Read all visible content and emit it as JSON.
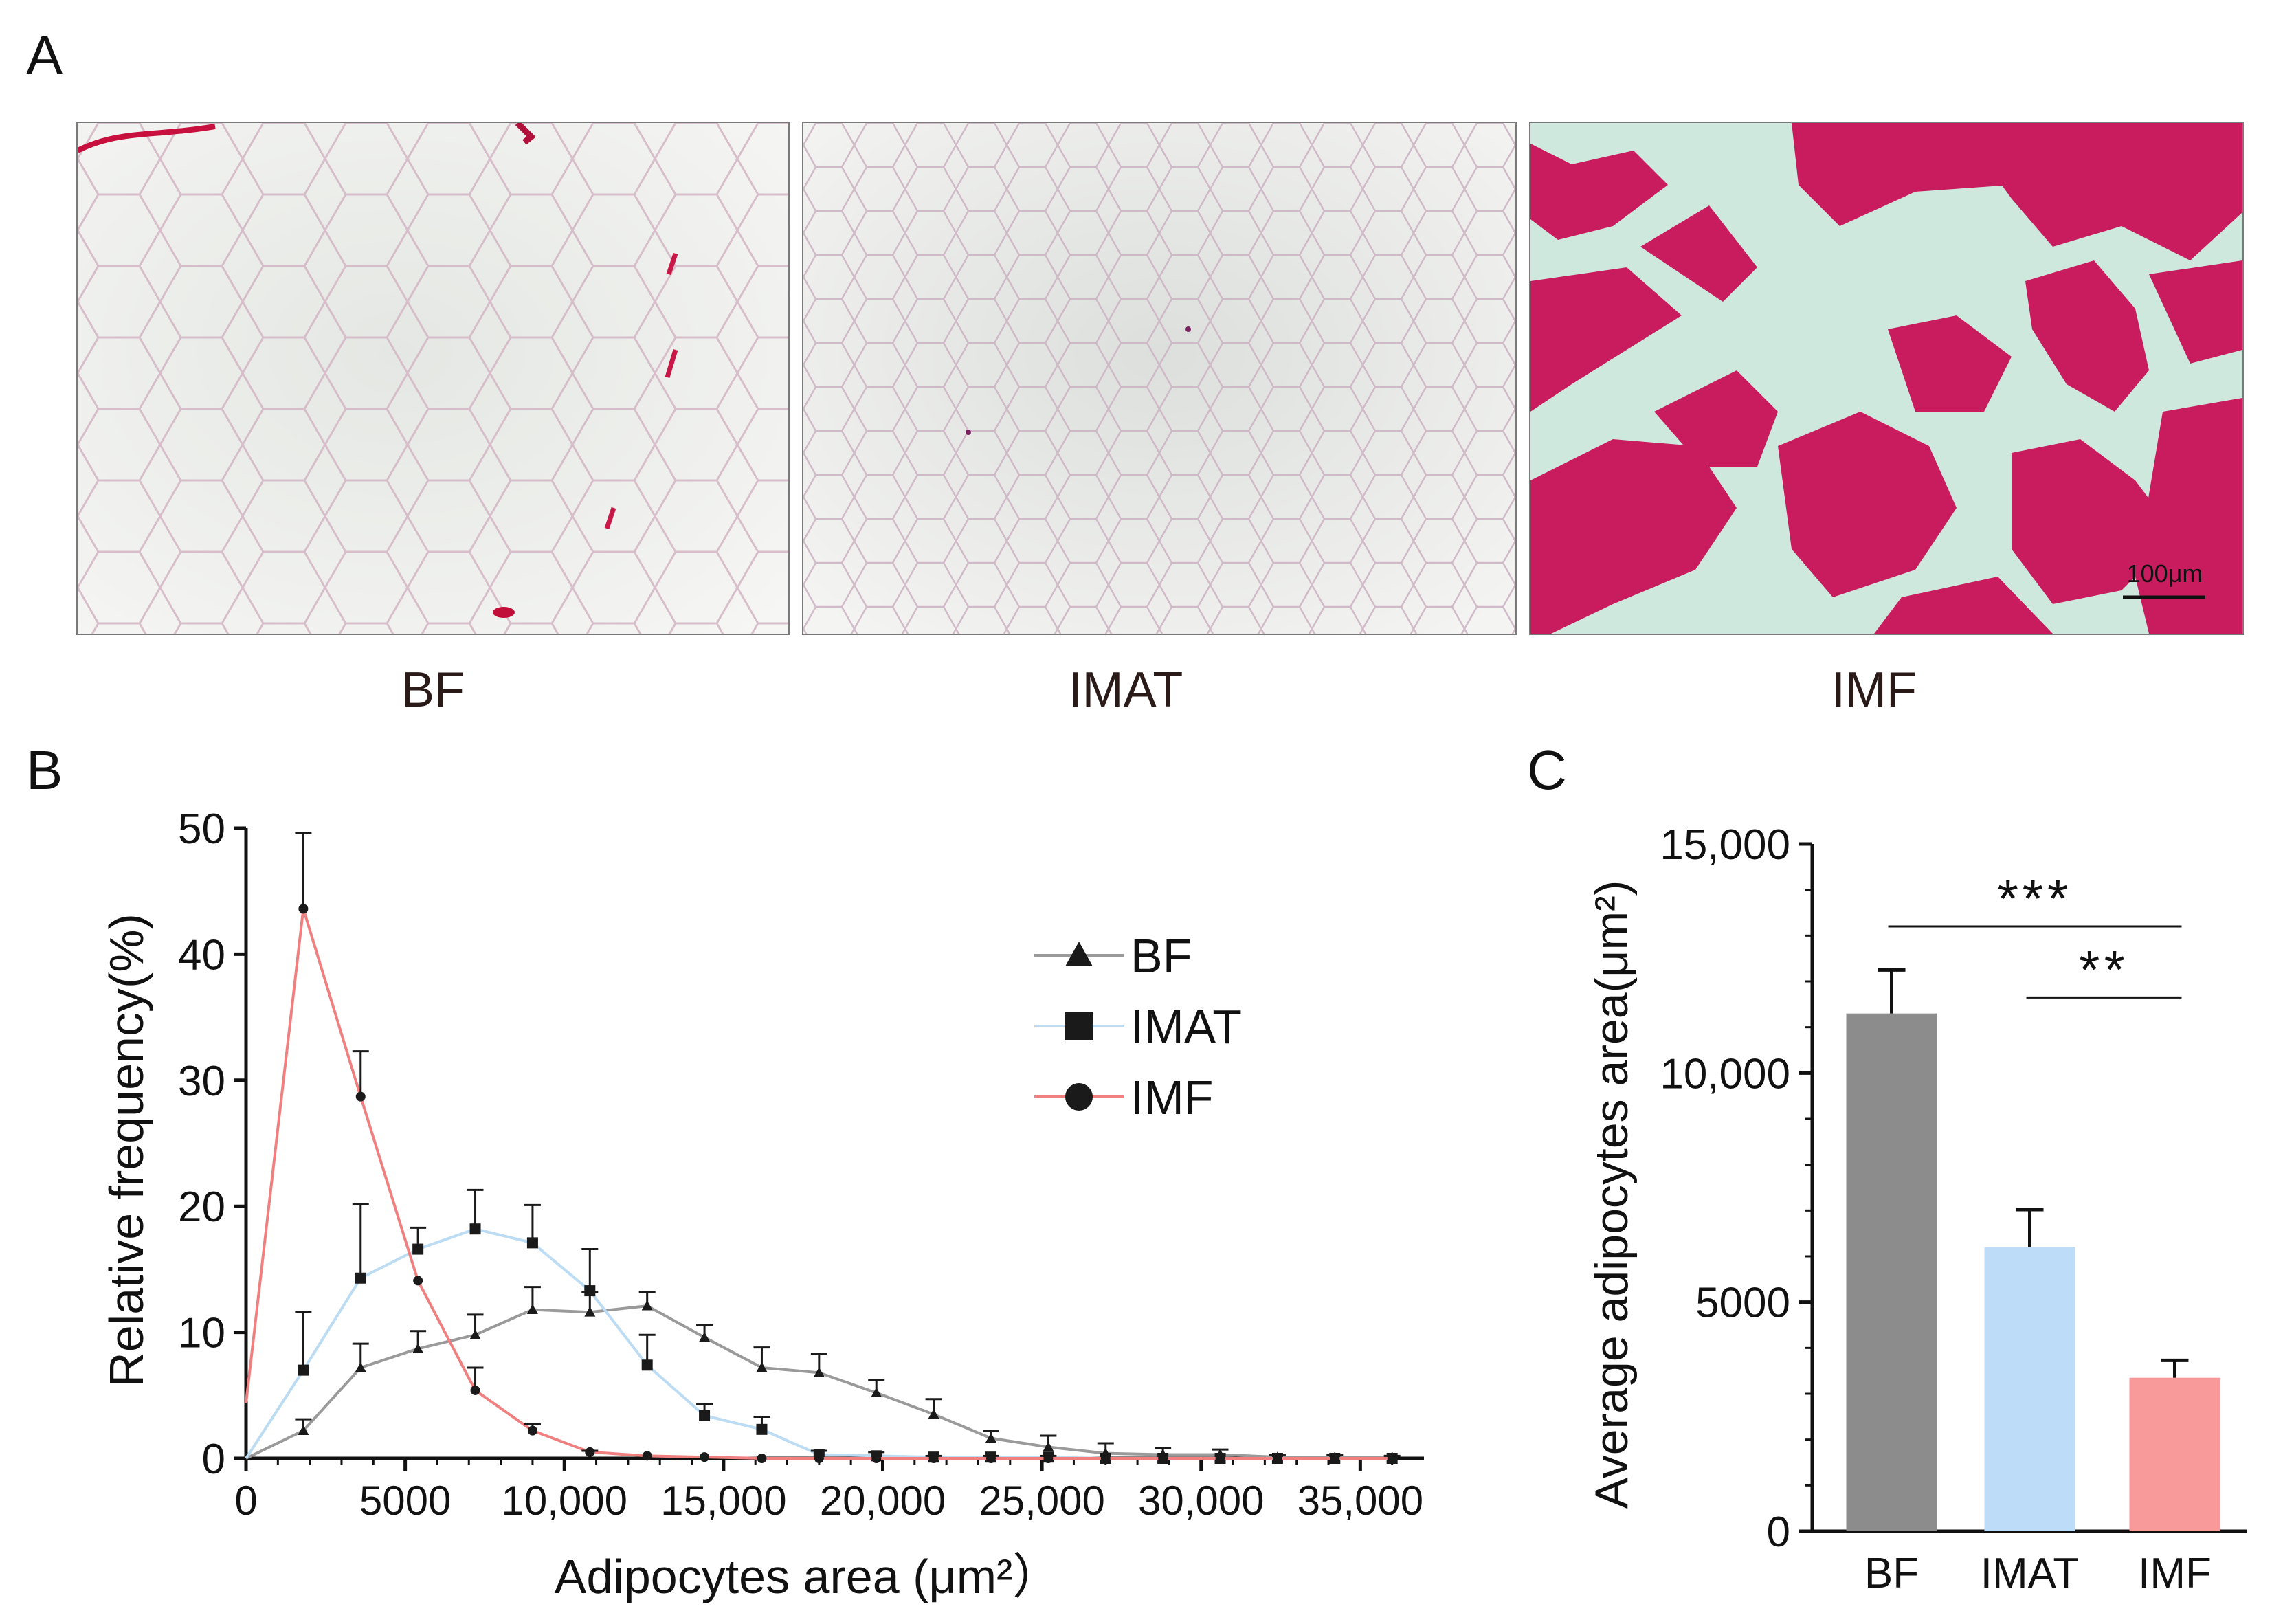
{
  "panels": {
    "a": "A",
    "b": "B",
    "c": "C"
  },
  "histology": [
    {
      "label": "BF"
    },
    {
      "label": "IMAT"
    },
    {
      "label": "IMF",
      "scale_bar": "100μm"
    }
  ],
  "chart_data": [
    {
      "type": "line",
      "xlabel": "Adipocytes area (μm²）",
      "ylabel": "Relative frequency(%)",
      "xlim": [
        0,
        37000
      ],
      "ylim": [
        0,
        50
      ],
      "xticks": [
        0,
        5000,
        10000,
        15000,
        20000,
        25000,
        30000,
        35000
      ],
      "xtick_labels": [
        "0",
        "5000",
        "10,000",
        "15,000",
        "20,000",
        "25,000",
        "30,000",
        "35,000"
      ],
      "yticks": [
        0,
        10,
        20,
        30,
        40,
        50
      ],
      "ytick_labels": [
        "0",
        "10",
        "20",
        "30",
        "40",
        "50"
      ],
      "x": [
        0,
        1800,
        3600,
        5400,
        7200,
        9000,
        10800,
        12600,
        14400,
        16200,
        18000,
        19800,
        21600,
        23400,
        25200,
        27000,
        28800,
        30600,
        32400,
        34200,
        36000
      ],
      "legend_position": "top-right",
      "series": [
        {
          "name": "BF",
          "marker": "triangle",
          "color": "#9a9a9a",
          "values": [
            0,
            2.2,
            7.2,
            8.7,
            9.8,
            11.8,
            11.6,
            12.1,
            9.6,
            7.2,
            6.8,
            5.2,
            3.5,
            1.6,
            0.9,
            0.4,
            0.3,
            0.3,
            0.1,
            0.1,
            0.1
          ],
          "errors": [
            0,
            0.9,
            1.9,
            1.4,
            1.6,
            1.8,
            1.6,
            1.1,
            1.0,
            1.6,
            1.5,
            1.0,
            1.2,
            0.6,
            0.9,
            0.8,
            0.5,
            0.4,
            0.2,
            0.2,
            0.1
          ]
        },
        {
          "name": "IMAT",
          "marker": "square",
          "color": "#bcdcf3",
          "values": [
            0,
            7.0,
            14.3,
            16.6,
            18.2,
            17.1,
            13.3,
            7.4,
            3.4,
            2.3,
            0.3,
            0.2,
            0.1,
            0.1,
            0.1,
            0,
            0,
            0,
            0,
            0,
            0
          ],
          "errors": [
            0,
            4.6,
            5.9,
            1.7,
            3.1,
            3.0,
            3.3,
            2.4,
            0.9,
            1.0,
            0.3,
            0.3,
            0.1,
            0.1,
            0.1,
            0,
            0,
            0,
            0,
            0,
            0
          ]
        },
        {
          "name": "IMF",
          "marker": "circle",
          "color": "#f08080",
          "values": [
            4.4,
            43.6,
            28.7,
            14.1,
            5.4,
            2.2,
            0.5,
            0.2,
            0.1,
            0,
            0,
            0,
            0,
            0,
            0,
            0,
            0,
            0,
            0,
            0,
            0
          ],
          "errors": [
            0,
            6.0,
            3.6,
            0,
            1.8,
            0.5,
            0.1,
            0,
            0,
            0,
            0,
            0,
            0,
            0,
            0,
            0,
            0,
            0,
            0,
            0,
            0
          ]
        }
      ]
    },
    {
      "type": "bar",
      "ylabel": "Average adipocytes area(μm²)",
      "xlabel": "",
      "ylim": [
        0,
        15000
      ],
      "yticks": [
        0,
        5000,
        10000,
        15000
      ],
      "ytick_labels": [
        "0",
        "5000",
        "10,000",
        "15,000"
      ],
      "categories": [
        "BF",
        "IMAT",
        "IMF"
      ],
      "values": [
        11300,
        6200,
        3350
      ],
      "errors": [
        950,
        820,
        380
      ],
      "colors": [
        "#8c8c8c",
        "#bcdcf8",
        "#f99a9a"
      ],
      "significance": [
        {
          "from": "BF",
          "to": "IMF",
          "label": "***"
        },
        {
          "from": "IMAT",
          "to": "IMF",
          "label": "**"
        }
      ]
    }
  ]
}
